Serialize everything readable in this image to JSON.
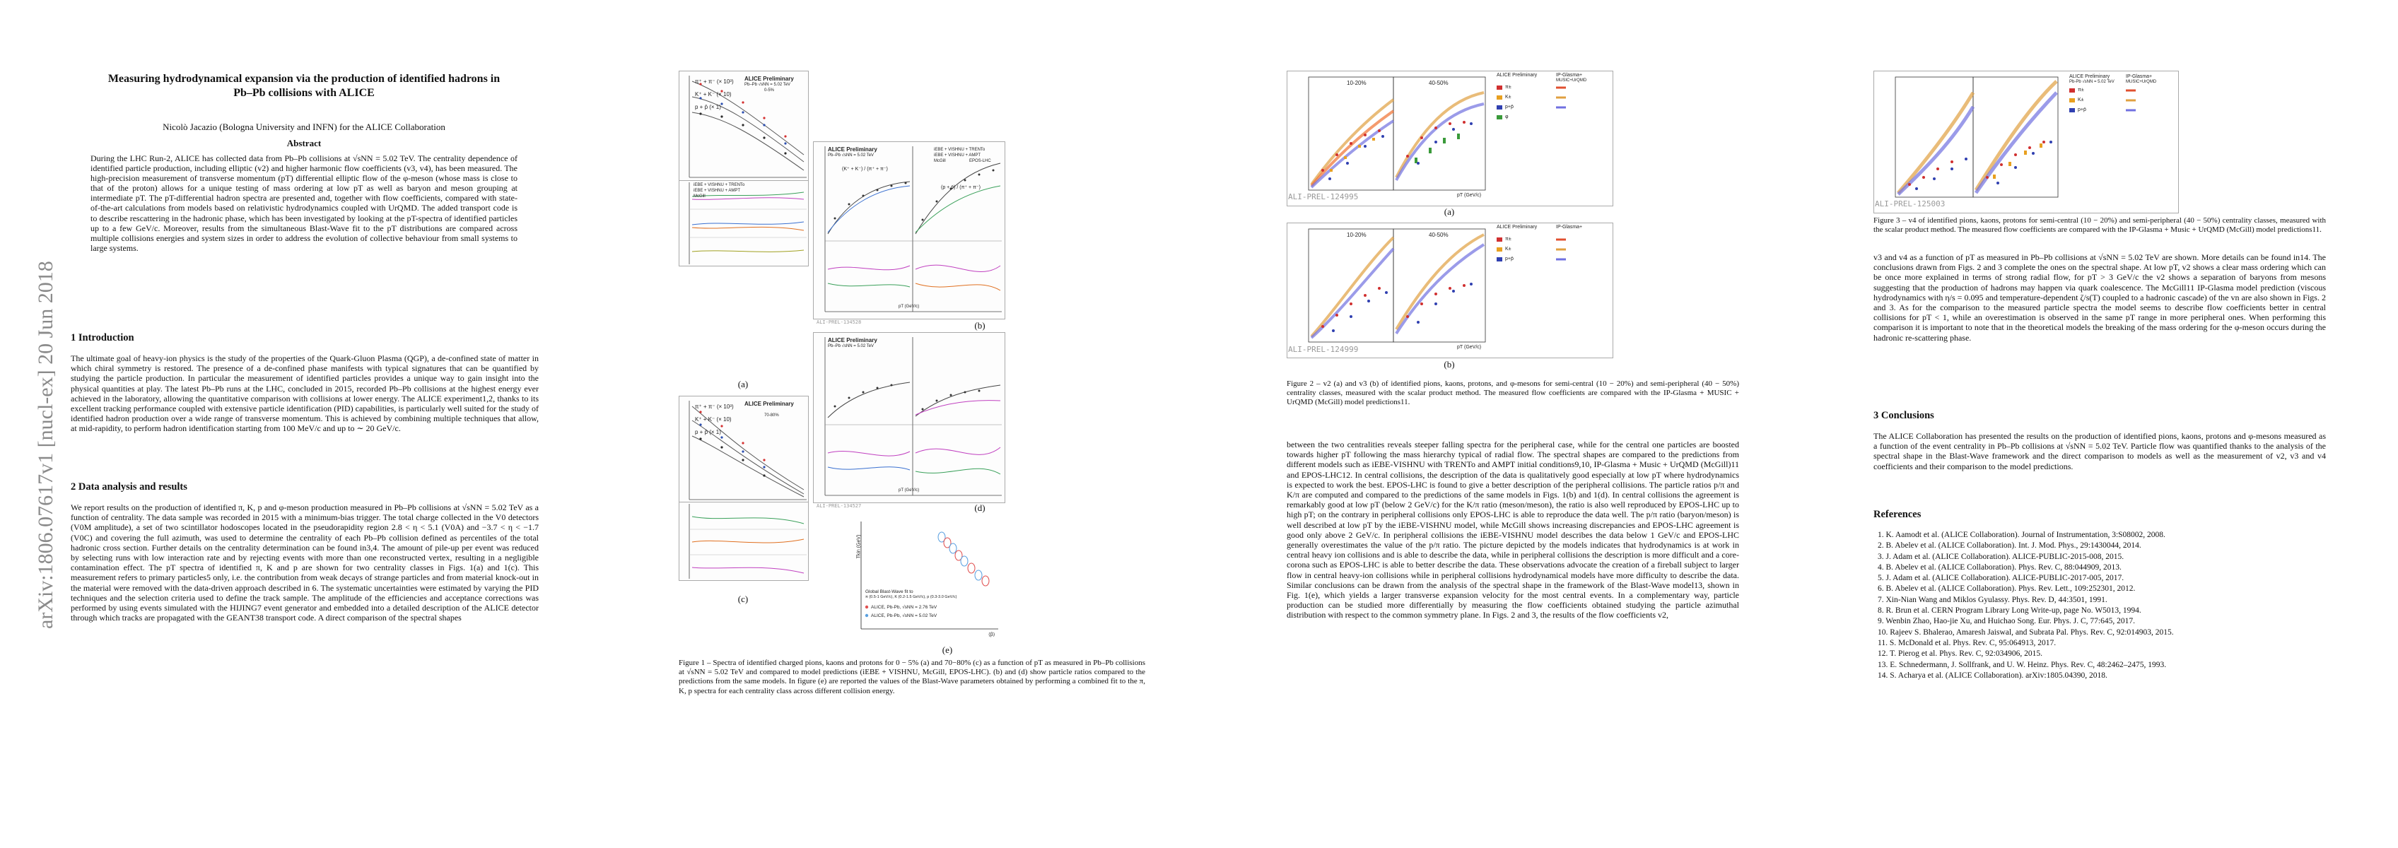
{
  "arxiv_id": "arXiv:1806.07617v1  [nucl-ex]  20 Jun 2018",
  "title_lines": [
    "Measuring hydrodynamical expansion via the production of identified hadrons in",
    "Pb–Pb collisions with ALICE"
  ],
  "author": "Nicolò Jacazio (Bologna University and INFN) for the ALICE Collaboration",
  "abstract_heading": "Abstract",
  "abstract": "During the LHC Run-2, ALICE has collected data from Pb–Pb collisions at √sNN = 5.02 TeV. The centrality dependence of identified particle production, including elliptic (v2) and higher harmonic flow coefficients (v3, v4), has been measured. The high-precision measurement of transverse momentum (pT) differential elliptic flow of the φ-meson (whose mass is close to that of the proton) allows for a unique testing of mass ordering at low pT as well as baryon and meson grouping at intermediate pT. The pT-differential hadron spectra are presented and, together with flow coefficients, compared with state-of-the-art calculations from models based on relativistic hydrodynamics coupled with UrQMD. The added transport code is to describe rescattering in the hadronic phase, which has been investigated by looking at the pT-spectra of identified particles up to a few GeV/c. Moreover, results from the simultaneous Blast-Wave fit to the pT distributions are compared across multiple collisions energies and system sizes in order to address the evolution of collective behaviour from small systems to large systems.",
  "sec1_heading": "1   Introduction",
  "sec1_text": "The ultimate goal of heavy-ion physics is the study of the properties of the Quark-Gluon Plasma (QGP), a de-confined state of matter in which chiral symmetry is restored. The presence of a de-confined phase manifests with typical signatures that can be quantified by studying the particle production. In particular the measurement of identified particles provides a unique way to gain insight into the physical quantities at play. The latest Pb–Pb runs at the LHC, concluded in 2015, recorded Pb–Pb collisions at the highest energy ever achieved in the laboratory, allowing the quantitative comparison with collisions at lower energy. The ALICE experiment1,2, thanks to its excellent tracking performance coupled with extensive particle identification (PID) capabilities, is particularly well suited for the study of identified hadron production over a wide range of transverse momentum. This is achieved by combining multiple techniques that allow, at mid-rapidity, to perform hadron identification starting from 100 MeV/c and up to ∼ 20 GeV/c.",
  "sec2_heading": "2   Data analysis and results",
  "sec2_text": "We report results on the production of identified π, K, p and φ-meson production measured in Pb–Pb collisions at √sNN = 5.02 TeV as a function of centrality. The data sample was recorded in 2015 with a minimum-bias trigger. The total charge collected in the V0 detectors (V0M amplitude), a set of two scintillator hodoscopes located in the pseudorapidity region 2.8 < η < 5.1 (V0A) and −3.7 < η < −1.7 (V0C) and covering the full azimuth, was used to determine the centrality of each Pb–Pb collision defined as percentiles of the total hadronic cross section. Further details on the centrality determination can be found in3,4. The amount of pile-up per event was reduced by selecting runs with low interaction rate and by rejecting events with more than one reconstructed vertex, resulting in a negligible contamination effect. The pT spectra of identified π, K and p are shown for two centrality classes in Figs. 1(a) and 1(c). This measurement refers to primary particles5 only, i.e. the contribution from weak decays of strange particles and from material knock-out in the material were removed with the data-driven approach described in 6. The systematic uncertainties were estimated by varying the PID techniques and the selection criteria used to define the track sample. The amplitude of the efficiencies and acceptance corrections was performed by using events simulated with the HIJING7 event generator and embedded into a detailed description of the ALICE detector through which tracks are propagated with the GEANT38 transport code. A direct comparison of the spectral shapes",
  "fig1_panels": {
    "a": "(a)",
    "b": "(b)",
    "c": "(c)",
    "d": "(d)",
    "e": "(e)"
  },
  "fig1_caption": "Figure 1 – Spectra of identified charged pions, kaons and protons for 0 − 5% (a) and 70−80% (c) as a function of pT as measured in Pb–Pb collisions at √sNN = 5.02 TeV and compared to model predictions (iEBE + VISHNU, McGill, EPOS-LHC). (b) and (d) show particle ratios compared to the predictions from the same models. In figure (e) are reported the values of the Blast-Wave parameters obtained by performing a combined fit to the π, K, p spectra for each centrality class across different collision energy.",
  "fig1_text": {
    "alice_prelim": "ALICE Preliminary",
    "pbpb": "Pb–Pb √sNN = 5.02 TeV",
    "cent_a": "0-5%",
    "cent_c": "70-80%",
    "pions": "π⁺ + π⁻ (× 10³)",
    "kaons": "K⁺ + K⁻ (× 10)",
    "protons": "p + p̄ (× 1)",
    "ratio_k": "(K⁺ + K⁻) / (π⁺ + π⁻)",
    "ratio_p": "(p + p̄) / (π⁺ + π⁻)",
    "model1": "iEBE + VISHNU + TRENTo",
    "model2": "iEBE + VISHNU + AMPT",
    "model3": "McGill",
    "model4": "EPOS-LHC",
    "bw_title": "Global Blast-Wave fit to",
    "bw_ranges": "π (0.5-1 GeV/c), K (0.2-1.5 GeV/c), p (0.3-3.0 GeV/c)",
    "bw_leg1": "ALICE, Pb-Pb, √sNN = 2.76 TeV",
    "bw_leg2": "ALICE, Pb-Pb, √sNN = 5.02 TeV",
    "bw_ylabel": "Tkin (GeV)",
    "bw_xlabel": "⟨β⟩",
    "wm1": "ALI-PREL-134528",
    "wm2": "ALI-PREL-134527",
    "pt_label": "pT (GeV/c)",
    "data_model": "Data / Model",
    "particle_ratio": "Particle Ratio"
  },
  "sec2_cont": "between the two centralities reveals steeper falling spectra for the peripheral case, while for the central one particles are boosted towards higher pT following the mass hierarchy typical of radial flow. The spectral shapes are compared to the predictions from different models such as iEBE-VISHNU with TRENTo and AMPT initial conditions9,10, IP-Glasma + Music + UrQMD (McGill)11 and EPOS-LHC12. In central collisions, the description of the data is qualitatively good especially at low pT where hydrodynamics is expected to work the best. EPOS-LHC is found to give a better description of the peripheral collisions. The particle ratios p/π and K/π are computed and compared to the predictions of the same models in Figs. 1(b) and 1(d). In central collisions the agreement is remarkably good at low pT (below 2 GeV/c) for the K/π ratio (meson/meson), the ratio is also well reproduced by EPOS-LHC up to high pT; on the contrary in peripheral collisions only EPOS-LHC is able to reproduce the data well. The p/π ratio (baryon/meson) is well described at low pT by the iEBE-VISHNU model, while McGill shows increasing discrepancies and EPOS-LHC agreement is good only above 2 GeV/c. In peripheral collisions the iEBE-VISHNU model describes the data below 1 GeV/c and EPOS-LHC generally overestimates the value of the p/π ratio. The picture depicted by the models indicates that hydrodynamics is at work in central heavy ion collisions and is able to describe the data, while in peripheral collisions the description is more difficult and a core-corona such as EPOS-LHC is able to better describe the data. These observations advocate the creation of a fireball subject to larger flow in central heavy-ion collisions while in peripheral collisions hydrodynamical models have more difficulty to describe the data. Similar conclusions can be drawn from the analysis of the spectral shape in the framework of the Blast-Wave model13, shown in Fig. 1(e), which yields a larger transverse expansion velocity for the most central events.   In a complementary way, particle production can be studied more differentially by measuring the flow coefficients obtained studying the particle azimuthal distribution with respect to the common symmetry plane. In Figs. 2 and 3, the results of the flow coefficients v2,",
  "fig2_caption": "Figure 2 – v2 (a) and v3 (b) of identified pions, kaons, protons, and φ-mesons for semi-central (10 − 20%) and semi-peripheral (40 − 50%) centrality classes, measured with the scalar product method. The measured flow coefficients are compared with the IP-Glasma + MUSIC + UrQMD (McGill) model predictions11.",
  "fig2_labels": {
    "a": "(a)",
    "b": "(b)",
    "c1": "10-20%",
    "c2": "40-50%",
    "alice": "ALICE Preliminary",
    "pbpb": "Pb-Pb √sNN = 5.02 TeV",
    "eta": "|y| < 0.5",
    "model": "IP-Glasma+",
    "model2": "MUSIC+UrQMD",
    "arxiv": "arXiv:1609.02958",
    "wm1": "ALI-PREL-124995",
    "wm2": "ALI-PREL-124999",
    "ylabel_a": "v2{SP,|Δη|>0.9}",
    "ylabel_b": "v3{SP,|Δη|>0.9}",
    "pt": "pT (GeV/c)",
    "sp_pi": "π±",
    "sp_k": "K±",
    "sp_p": "p+p̄",
    "sp_phi": "φ"
  },
  "fig3_caption": "Figure 3 – v4 of identified pions, kaons, protons for semi-central (10 − 20%) and semi-peripheral (40 − 50%) centrality classes, measured with the scalar product method. The measured flow coefficients are compared with the IP-Glasma + Music + UrQMD (McGill) model predictions11.",
  "fig3_labels": {
    "wm": "ALI-PREL-125003",
    "ylabel": "v4{SP,|Δη|>0.9}"
  },
  "p4_text": "v3 and v4 as a function of pT as measured in Pb–Pb collisions at √sNN = 5.02 TeV are shown. More details can be found in14. The conclusions drawn from Figs. 2 and 3 complete the ones on the spectral shape. At low pT, v2 shows a clear mass ordering which can be once more explained in terms of strong radial flow, for pT > 3 GeV/c the v2 shows a separation of baryons from mesons suggesting that the production of hadrons may happen via quark coalescence. The McGill11 IP-Glasma model prediction (viscous hydrodynamics with η/s = 0.095 and temperature-dependent ζ/s(T) coupled to a hadronic cascade) of the vn are also shown in Figs. 2 and 3. As for the comparison to the measured particle spectra the model seems to describe flow coefficients better in central collisions for pT < 1, while an overestimation is observed in the same pT range in more peripheral ones. When performing this comparison it is important to note that in the theoretical models the breaking of the mass ordering for the φ-meson occurs during the hadronic re-scattering phase.",
  "sec3_heading": "3   Conclusions",
  "sec3_text": "The ALICE Collaboration has presented the results on the production of identified pions, kaons, protons and φ-mesons measured as a function of the event centrality in Pb–Pb collisions at √sNN = 5.02 TeV. Particle flow was quantified thanks to the analysis of the spectral shape in the Blast-Wave framework and the direct comparison to models as well as the measurement of v2, v3 and v4 coefficients and their comparison to the model predictions.",
  "refs_heading": "References",
  "refs": [
    "1.  K. Aamodt et al. (ALICE Collaboration). Journal of Instrumentation, 3:S08002, 2008.",
    "2.  B. Abelev et al. (ALICE Collaboration). Int. J. Mod. Phys., 29:1430044, 2014.",
    "3.  J. Adam et al. (ALICE Collaboration). ALICE-PUBLIC-2015-008, 2015.",
    "4.  B. Abelev et al. (ALICE Collaboration). Phys. Rev. C, 88:044909, 2013.",
    "5.  J. Adam et al. (ALICE Collaboration). ALICE-PUBLIC-2017-005, 2017.",
    "6.  B. Abelev et al. (ALICE Collaboration). Phys. Rev. Lett., 109:252301, 2012.",
    "7.  Xin-Nian Wang and Miklos Gyulassy. Phys. Rev. D, 44:3501, 1991.",
    "8.  R. Brun et al. CERN Program Library Long Write-up, page No. W5013, 1994.",
    "9.  Wenbin Zhao, Hao-jie Xu, and Huichao Song. Eur. Phys. J. C, 77:645, 2017.",
    "10. Rajeev S. Bhalerao, Amaresh Jaiswal, and Subrata Pal. Phys. Rev. C, 92:014903, 2015.",
    "11. S. McDonald et al. Phys. Rev. C, 95:064913, 2017.",
    "12. T. Pierog et al. Phys. Rev. C, 92:034906, 2015.",
    "13. E. Schnedermann, J. Sollfrank, and U. W. Heinz. Phys. Rev. C, 48:2462–2475, 1993.",
    "14. S. Acharya et al. (ALICE Collaboration). arXiv:1805.04390, 2018."
  ]
}
